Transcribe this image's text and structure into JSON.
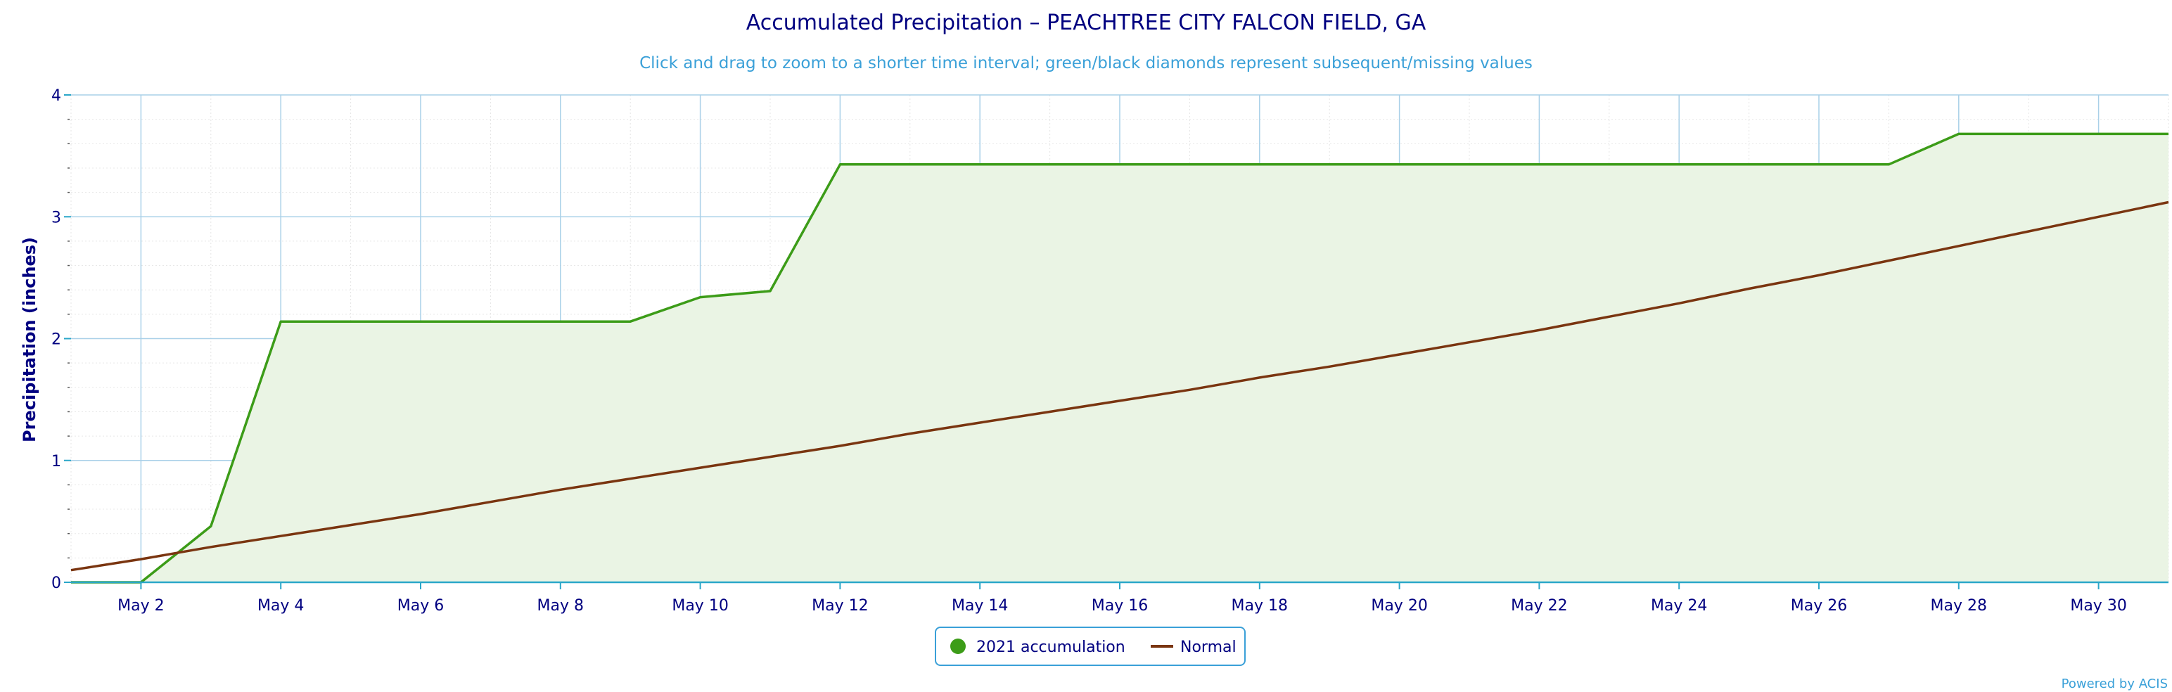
{
  "chart_data": {
    "type": "area",
    "title": "Accumulated Precipitation – PEACHTREE CITY FALCON FIELD, GA",
    "subtitle": "Click and drag to zoom to a shorter time interval; green/black diamonds represent subsequent/missing values",
    "ylabel": "Precipitation (inches)",
    "xlabel": "",
    "ylim": [
      0,
      4
    ],
    "yticks": [
      "0",
      "1",
      "2",
      "3",
      "4"
    ],
    "xlim": [
      "May 1",
      "May 31"
    ],
    "xticks": [
      "May 2",
      "May 4",
      "May 6",
      "May 8",
      "May 10",
      "May 12",
      "May 14",
      "May 16",
      "May 18",
      "May 20",
      "May 22",
      "May 24",
      "May 26",
      "May 28",
      "May 30"
    ],
    "x": [
      "May 1",
      "May 2",
      "May 3",
      "May 4",
      "May 5",
      "May 6",
      "May 7",
      "May 8",
      "May 9",
      "May 10",
      "May 11",
      "May 12",
      "May 13",
      "May 14",
      "May 15",
      "May 16",
      "May 17",
      "May 18",
      "May 19",
      "May 20",
      "May 21",
      "May 22",
      "May 23",
      "May 24",
      "May 25",
      "May 26",
      "May 27",
      "May 28",
      "May 29",
      "May 30",
      "May 31"
    ],
    "series": [
      {
        "name": "2021 accumulation",
        "color": "#3c9c18",
        "fill": "#eaf4e4",
        "style": "area",
        "values": [
          0,
          0,
          0.46,
          2.14,
          2.14,
          2.14,
          2.14,
          2.14,
          2.14,
          2.34,
          2.39,
          3.43,
          3.43,
          3.43,
          3.43,
          3.43,
          3.43,
          3.43,
          3.43,
          3.43,
          3.43,
          3.43,
          3.43,
          3.43,
          3.43,
          3.43,
          3.43,
          3.68,
          3.68,
          3.68,
          3.68
        ]
      },
      {
        "name": "Normal",
        "color": "#7a3510",
        "style": "line",
        "values": [
          0.1,
          0.19,
          0.29,
          0.38,
          0.47,
          0.56,
          0.66,
          0.76,
          0.85,
          0.94,
          1.03,
          1.12,
          1.22,
          1.31,
          1.4,
          1.49,
          1.58,
          1.68,
          1.77,
          1.87,
          1.97,
          2.07,
          2.18,
          2.29,
          2.41,
          2.52,
          2.64,
          2.76,
          2.88,
          3.0,
          3.12
        ]
      }
    ],
    "grid": true,
    "legend_position": "bottom-center"
  },
  "legend": {
    "items": [
      {
        "label": "2021 accumulation",
        "marker": "circle",
        "color": "#3c9c18"
      },
      {
        "label": "Normal",
        "marker": "line",
        "color": "#7a3510"
      }
    ]
  },
  "credit": "Powered by ACIS"
}
